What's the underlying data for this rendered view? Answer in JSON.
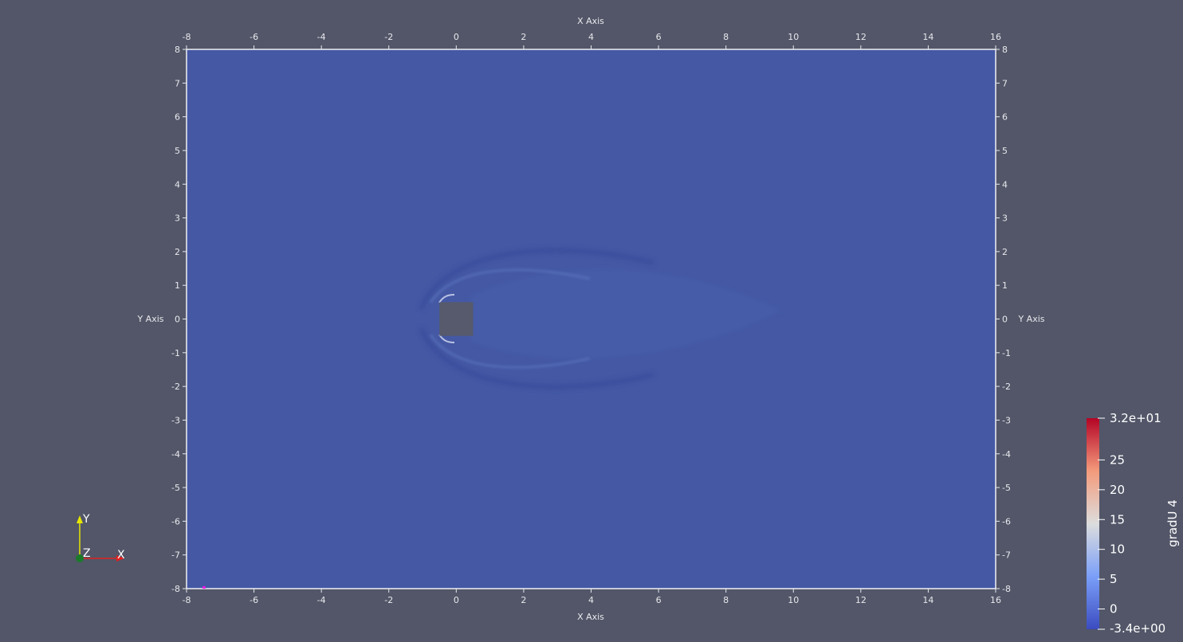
{
  "axes": {
    "x_title": "X Axis",
    "y_title": "Y Axis",
    "x_ticks": [
      "-8",
      "-6",
      "-4",
      "-2",
      "0",
      "2",
      "4",
      "6",
      "8",
      "10",
      "12",
      "14",
      "16"
    ],
    "y_ticks": [
      "8",
      "7",
      "6",
      "5",
      "4",
      "3",
      "2",
      "1",
      "0",
      "-1",
      "-2",
      "-3",
      "-4",
      "-5",
      "-6",
      "-7",
      "-8"
    ],
    "x_range": [
      -8,
      16
    ],
    "y_range": [
      -8,
      8
    ]
  },
  "obstacle": {
    "x_min": -0.5,
    "x_max": 0.5,
    "y_min": -0.5,
    "y_max": 0.5
  },
  "colorbar": {
    "title": "gradU 4",
    "max_label": "3.2e+01",
    "min_label": "-3.4e+00",
    "min_value": -3.4,
    "max_value": 32,
    "labels": [
      {
        "text": "25",
        "value": 25
      },
      {
        "text": "20",
        "value": 20
      },
      {
        "text": "15",
        "value": 15
      },
      {
        "text": "10",
        "value": 10
      },
      {
        "text": "5",
        "value": 5
      },
      {
        "text": "0",
        "value": 0
      }
    ]
  },
  "orientation": {
    "x": "X",
    "y": "Y",
    "z": "Z"
  },
  "colors": {
    "background": "#525668",
    "field": "#4458a4",
    "axis_text": "#e8e8ec",
    "obstacle": "#565a6c"
  }
}
